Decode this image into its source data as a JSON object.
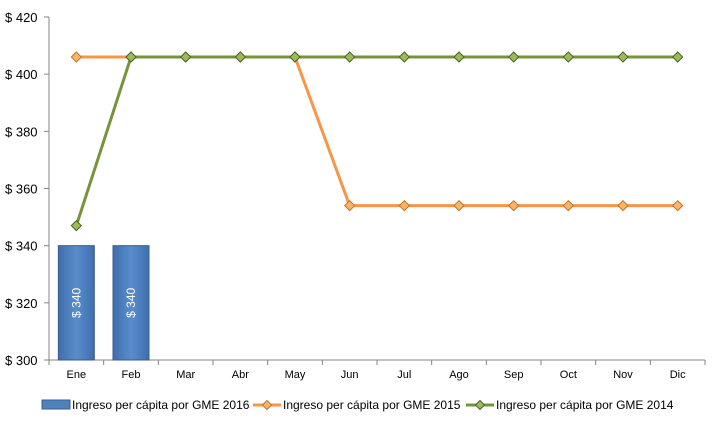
{
  "chart_data": {
    "type": "bar+line",
    "title": "",
    "xlabel": "",
    "ylabel": "",
    "categories": [
      "Ene",
      "Feb",
      "Mar",
      "Abr",
      "May",
      "Jun",
      "Jul",
      "Ago",
      "Sep",
      "Oct",
      "Nov",
      "Dic"
    ],
    "ylim": [
      300,
      420
    ],
    "yticks": [
      300,
      320,
      340,
      360,
      380,
      400,
      420
    ],
    "ytick_labels": [
      "$ 300",
      "$ 320",
      "$ 340",
      "$ 360",
      "$ 380",
      "$ 400",
      "$ 420"
    ],
    "grid": false,
    "legend_position": "bottom",
    "series": [
      {
        "name": "Ingreso per cápita por GME 2016",
        "type": "bar",
        "color": "#4F81BD",
        "values": [
          340,
          340,
          null,
          null,
          null,
          null,
          null,
          null,
          null,
          null,
          null,
          null
        ],
        "data_labels": [
          "$ 340",
          "$ 340"
        ]
      },
      {
        "name": "Ingreso per cápita por GME 2015",
        "type": "line",
        "color": "#F79646",
        "values": [
          406,
          406,
          406,
          406,
          406,
          354,
          354,
          354,
          354,
          354,
          354,
          354
        ]
      },
      {
        "name": "Ingreso per cápita por GME 2014",
        "type": "line",
        "color": "#77933C",
        "values": [
          347,
          406,
          406,
          406,
          406,
          406,
          406,
          406,
          406,
          406,
          406,
          406
        ]
      }
    ]
  }
}
